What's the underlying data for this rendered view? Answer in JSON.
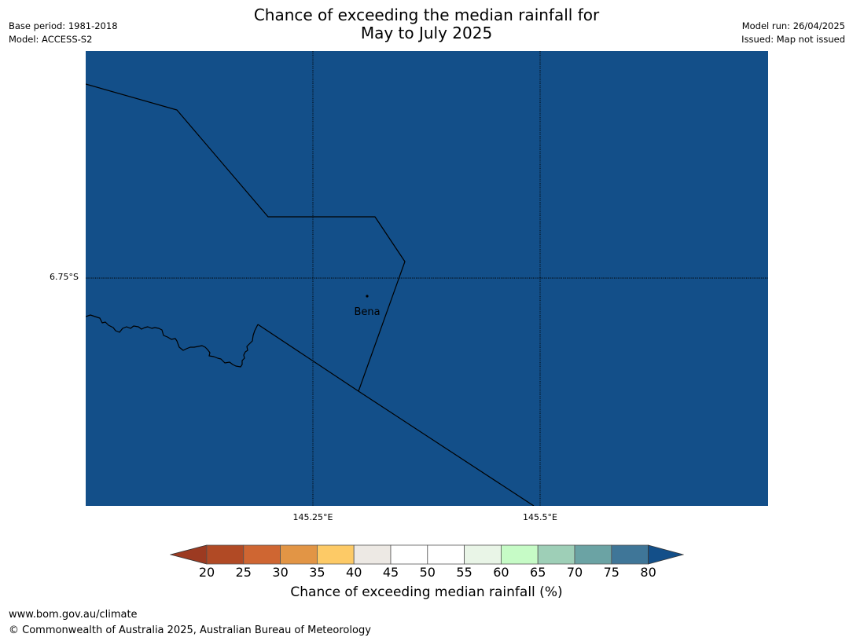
{
  "title": {
    "line1": "Chance of exceeding the median rainfall for",
    "line2": "May to July 2025"
  },
  "meta": {
    "base_period": "Base period: 1981-2018",
    "model": "Model: ACCESS-S2",
    "model_run": "Model run: 26/04/2025",
    "issued": "Issued: Map not issued"
  },
  "map": {
    "fill_color": "#134f89",
    "latitude_labels": [
      "6.75°S"
    ],
    "longitude_labels": [
      "145.25°E",
      "145.5°E"
    ],
    "places": [
      {
        "name": "Bena"
      }
    ]
  },
  "legend": {
    "ticks": [
      "20",
      "25",
      "30",
      "35",
      "40",
      "45",
      "50",
      "55",
      "60",
      "65",
      "70",
      "75",
      "80"
    ],
    "under_color": "#9c3a21",
    "over_color": "#134f89",
    "colors": [
      "#b14a25",
      "#cf6632",
      "#e29545",
      "#fdca66",
      "#ede9e4",
      "#ffffff",
      "#ffffff",
      "#e9f5e7",
      "#c6fbc6",
      "#9ecfb7",
      "#6ba3a4",
      "#3f7698"
    ],
    "label": "Chance of exceeding median rainfall (%)"
  },
  "footer": {
    "url": "www.bom.gov.au/climate",
    "copyright": "© Commonwealth of Australia 2025, Australian Bureau of Meteorology"
  }
}
